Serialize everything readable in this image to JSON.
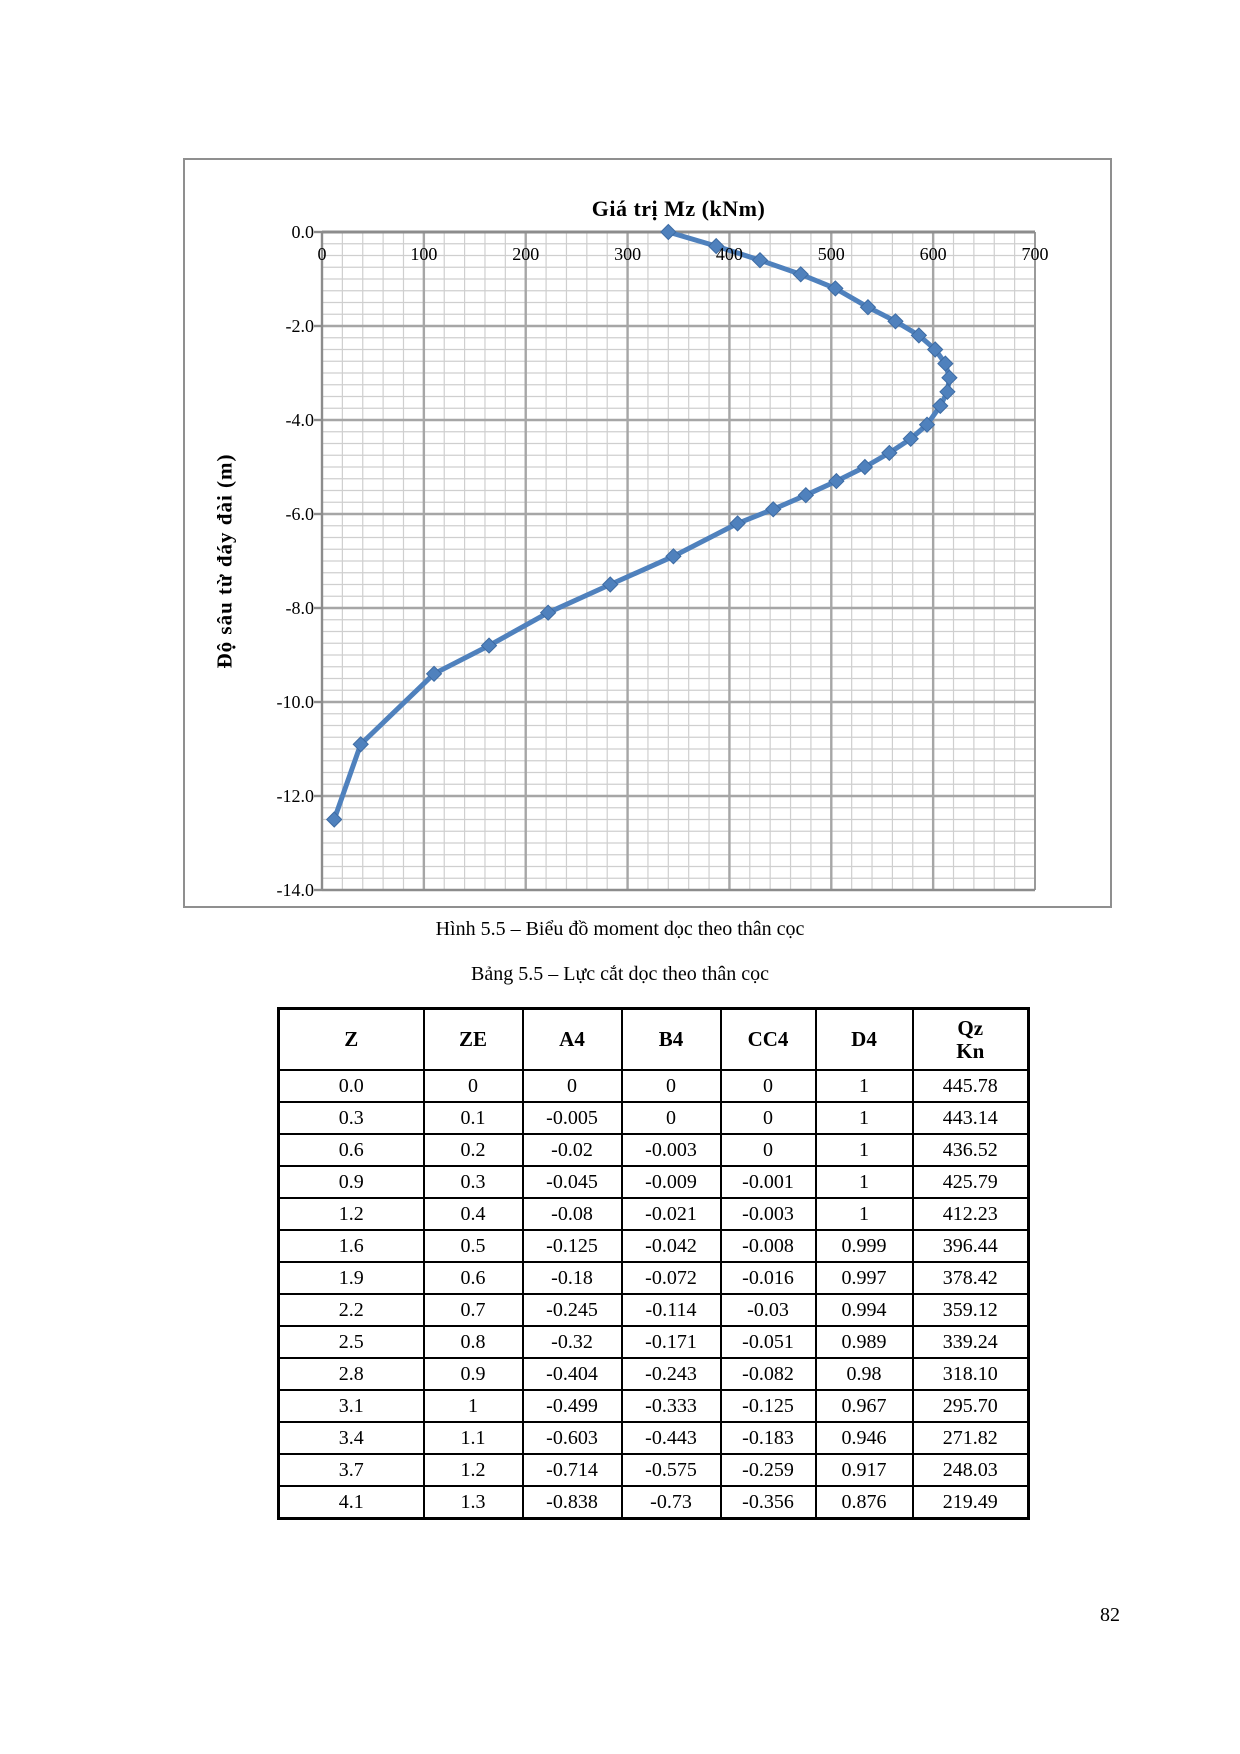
{
  "page": {
    "number": "82"
  },
  "figure_caption": "Hình 5.5 – Biểu đồ moment dọc theo thân cọc",
  "table_caption": "Bảng 5.5 – Lực cắt dọc theo thân cọc",
  "chart_data": {
    "type": "line",
    "title": "Giá trị Mz (kNm)",
    "xlabel": "Giá trị Mz (kNm)",
    "ylabel": "Độ sâu từ đáy đài (m)",
    "xlim": [
      0,
      700
    ],
    "ylim": [
      -14.0,
      0.0
    ],
    "x_ticks": [
      "0",
      "100",
      "200",
      "300",
      "400",
      "500",
      "600",
      "700"
    ],
    "y_ticks": [
      "0.0",
      "-2.0",
      "-4.0",
      "-6.0",
      "-8.0",
      "-10.0",
      "-12.0",
      "-14.0"
    ],
    "grid": {
      "on": true,
      "x_minor_step": 20,
      "x_major_step": 100,
      "y_minor_step": 0.25,
      "y_major_step": 2.0
    },
    "legend": "none",
    "series": [
      {
        "name": "Mz",
        "color": "#4F81BD",
        "marker": "diamond",
        "points": [
          [
            340,
            0.0
          ],
          [
            387,
            -0.3
          ],
          [
            430,
            -0.6
          ],
          [
            470,
            -0.9
          ],
          [
            504,
            -1.2
          ],
          [
            536,
            -1.6
          ],
          [
            563,
            -1.9
          ],
          [
            586,
            -2.2
          ],
          [
            602,
            -2.5
          ],
          [
            612,
            -2.8
          ],
          [
            616,
            -3.1
          ],
          [
            614,
            -3.4
          ],
          [
            607,
            -3.7
          ],
          [
            594,
            -4.1
          ],
          [
            578,
            -4.4
          ],
          [
            557,
            -4.7
          ],
          [
            533,
            -5.0
          ],
          [
            505,
            -5.3
          ],
          [
            475,
            -5.6
          ],
          [
            443,
            -5.9
          ],
          [
            408,
            -6.2
          ],
          [
            345,
            -6.9
          ],
          [
            283,
            -7.5
          ],
          [
            222,
            -8.1
          ],
          [
            164,
            -8.8
          ],
          [
            110,
            -9.4
          ],
          [
            38,
            -10.9
          ],
          [
            12,
            -12.5
          ]
        ]
      }
    ]
  },
  "table": {
    "headers": [
      "Z",
      "ZE",
      "A4",
      "B4",
      "CC4",
      "D4",
      [
        "Qz",
        "Kn"
      ]
    ],
    "rows": [
      [
        "0.0",
        "0",
        "0",
        "0",
        "0",
        "1",
        "445.78"
      ],
      [
        "0.3",
        "0.1",
        "-0.005",
        "0",
        "0",
        "1",
        "443.14"
      ],
      [
        "0.6",
        "0.2",
        "-0.02",
        "-0.003",
        "0",
        "1",
        "436.52"
      ],
      [
        "0.9",
        "0.3",
        "-0.045",
        "-0.009",
        "-0.001",
        "1",
        "425.79"
      ],
      [
        "1.2",
        "0.4",
        "-0.08",
        "-0.021",
        "-0.003",
        "1",
        "412.23"
      ],
      [
        "1.6",
        "0.5",
        "-0.125",
        "-0.042",
        "-0.008",
        "0.999",
        "396.44"
      ],
      [
        "1.9",
        "0.6",
        "-0.18",
        "-0.072",
        "-0.016",
        "0.997",
        "378.42"
      ],
      [
        "2.2",
        "0.7",
        "-0.245",
        "-0.114",
        "-0.03",
        "0.994",
        "359.12"
      ],
      [
        "2.5",
        "0.8",
        "-0.32",
        "-0.171",
        "-0.051",
        "0.989",
        "339.24"
      ],
      [
        "2.8",
        "0.9",
        "-0.404",
        "-0.243",
        "-0.082",
        "0.98",
        "318.10"
      ],
      [
        "3.1",
        "1",
        "-0.499",
        "-0.333",
        "-0.125",
        "0.967",
        "295.70"
      ],
      [
        "3.4",
        "1.1",
        "-0.603",
        "-0.443",
        "-0.183",
        "0.946",
        "271.82"
      ],
      [
        "3.7",
        "1.2",
        "-0.714",
        "-0.575",
        "-0.259",
        "0.917",
        "248.03"
      ],
      [
        "4.1",
        "1.3",
        "-0.838",
        "-0.73",
        "-0.356",
        "0.876",
        "219.49"
      ]
    ]
  }
}
